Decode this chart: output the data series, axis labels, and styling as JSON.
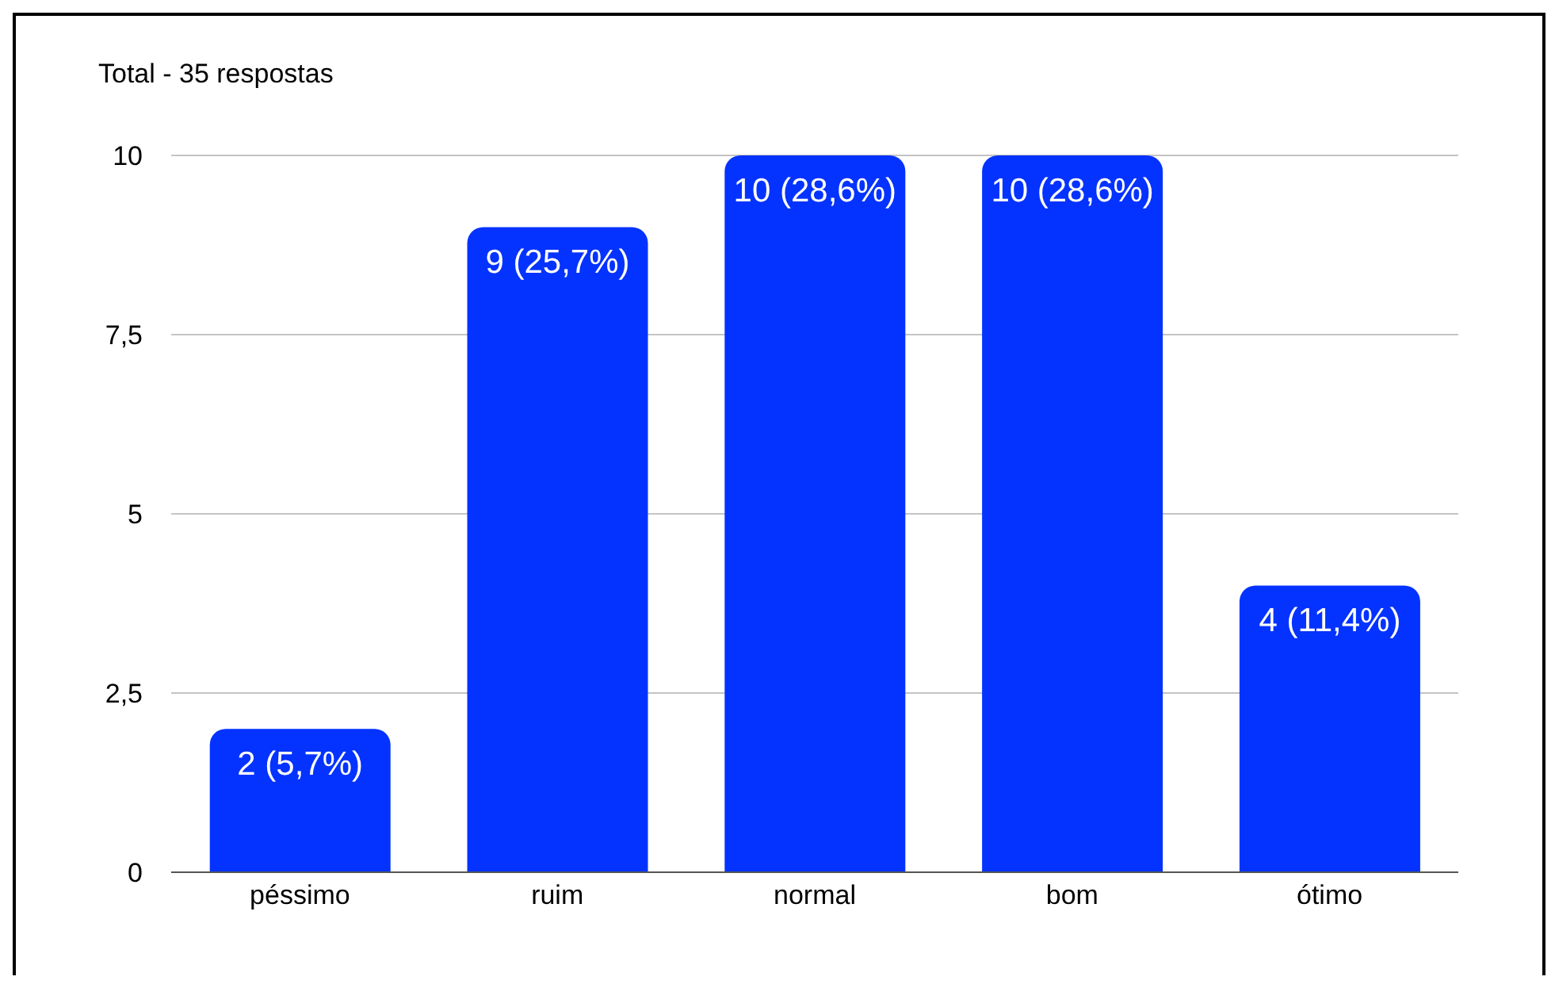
{
  "chart_data": {
    "type": "bar",
    "title": "Total - 35 respostas",
    "categories": [
      "péssimo",
      "ruim",
      "normal",
      "bom",
      "ótimo"
    ],
    "values": [
      2,
      9,
      10,
      10,
      4
    ],
    "color": "#0433ff",
    "value_labels": [
      "2 (5,7%)",
      "9 (25,7%)",
      "10 (28,6%)",
      "10 (28,6%)",
      "4 (11,4%)"
    ],
    "ylim": [
      0,
      10
    ],
    "yticks": [
      0,
      {
        "value": 2.5,
        "label": "2,5"
      },
      5,
      {
        "value": 7.5,
        "label": "7,5"
      },
      10
    ],
    "grid": "y"
  }
}
